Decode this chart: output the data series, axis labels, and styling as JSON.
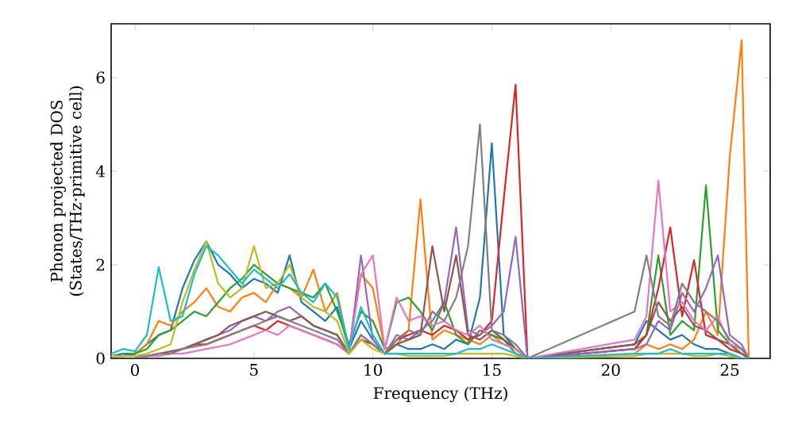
{
  "chart_data": {
    "type": "line",
    "xlabel": "Frequency (THz)",
    "ylabel": "Phonon projected DOS (States/THz·primitive cell)",
    "xlim": [
      -1,
      26.7
    ],
    "ylim": [
      0,
      7.15
    ],
    "xticks": [
      0,
      5,
      10,
      15,
      20,
      25
    ],
    "yticks": [
      0,
      2,
      4,
      6
    ],
    "grid": false,
    "marker": "none",
    "line_style": "solid",
    "x": [
      -1,
      -0.5,
      0,
      0.5,
      1,
      1.5,
      2,
      2.5,
      3,
      3.5,
      4,
      4.5,
      5,
      5.5,
      6,
      6.5,
      7,
      7.5,
      8,
      8.5,
      9,
      9.5,
      10,
      10.5,
      11,
      11.5,
      12,
      12.5,
      13,
      13.5,
      14,
      14.5,
      15,
      15.5,
      16,
      16.5,
      21,
      21.5,
      22,
      22.5,
      23,
      23.5,
      24,
      24.5,
      25,
      25.5,
      25.8
    ],
    "series": [
      {
        "color": "#1f77b4",
        "values": [
          0.05,
          0.1,
          0.1,
          0.3,
          0.5,
          0.6,
          1.5,
          2.1,
          2.5,
          2.0,
          1.8,
          1.5,
          1.7,
          1.6,
          1.4,
          2.2,
          1.2,
          1.0,
          0.8,
          1.1,
          0.2,
          0.8,
          0.4,
          0.1,
          0.3,
          0.2,
          0.2,
          0.3,
          0.2,
          0.4,
          0.3,
          1.3,
          4.6,
          0.5,
          0.2,
          0,
          0.3,
          0.8,
          0.6,
          0.4,
          0.5,
          0.3,
          0.2,
          0.2,
          0.1,
          0,
          0
        ]
      },
      {
        "color": "#ff7f0e",
        "values": [
          0.05,
          0.05,
          0.1,
          0.3,
          0.8,
          0.7,
          1.0,
          1.2,
          1.5,
          1.1,
          1.0,
          1.3,
          1.4,
          1.2,
          1.6,
          1.5,
          1.3,
          1.9,
          1.0,
          1.4,
          0.2,
          1.8,
          1.5,
          0.2,
          0.3,
          0.6,
          3.4,
          0.4,
          0.6,
          0.5,
          0.4,
          0.3,
          0.5,
          0.3,
          0.2,
          0,
          0.1,
          0.3,
          0.2,
          0.3,
          0.2,
          0.4,
          1.0,
          0.5,
          4.3,
          6.8,
          0
        ]
      },
      {
        "color": "#2ca02c",
        "values": [
          0.05,
          0.05,
          0.1,
          0.2,
          0.5,
          0.6,
          0.8,
          1.0,
          0.9,
          1.2,
          1.5,
          1.7,
          2.0,
          1.8,
          1.6,
          1.5,
          1.4,
          1.3,
          1.6,
          1.0,
          0.3,
          1.0,
          0.8,
          0.2,
          1.2,
          1.3,
          1.0,
          0.6,
          1.2,
          0.5,
          0.3,
          0.6,
          0.5,
          0.4,
          0.1,
          0,
          0.2,
          0.5,
          2.2,
          0.5,
          0.8,
          0.6,
          3.7,
          0.6,
          0.3,
          0.2,
          0
        ]
      },
      {
        "color": "#d62728",
        "values": [
          null,
          null,
          null,
          null,
          null,
          null,
          0.2,
          0.3,
          0.3,
          0.4,
          0.5,
          0.6,
          0.7,
          0.6,
          0.8,
          0.7,
          0.6,
          0.5,
          0.4,
          0.3,
          0.1,
          0.4,
          0.3,
          0.1,
          0.4,
          0.5,
          0.6,
          0.5,
          0.7,
          0.6,
          0.4,
          0.5,
          0.8,
          3.4,
          5.85,
          0,
          0.2,
          0.5,
          1.5,
          2.8,
          0.9,
          2.1,
          0.5,
          0.4,
          0.2,
          0.1,
          0
        ]
      },
      {
        "color": "#9467bd",
        "values": [
          null,
          null,
          0.05,
          0.05,
          0.1,
          0.1,
          0.2,
          0.3,
          0.4,
          0.5,
          0.6,
          0.8,
          0.9,
          0.8,
          1.0,
          1.1,
          0.9,
          0.7,
          0.6,
          0.5,
          0.1,
          2.2,
          0.4,
          0.1,
          0.5,
          0.4,
          0.6,
          0.8,
          1.2,
          2.8,
          0.6,
          0.5,
          0.7,
          1.0,
          2.6,
          0,
          0.2,
          0.3,
          0.8,
          0.6,
          1.4,
          1.0,
          1.5,
          2.2,
          0.5,
          0.3,
          0
        ]
      },
      {
        "color": "#8c564b",
        "values": [
          null,
          null,
          0.05,
          0.05,
          0.1,
          0.15,
          0.2,
          0.3,
          0.4,
          0.5,
          0.7,
          0.8,
          0.9,
          1.0,
          0.9,
          0.8,
          0.9,
          0.7,
          0.6,
          0.5,
          0.1,
          0.5,
          0.3,
          0.1,
          0.3,
          0.4,
          0.5,
          2.4,
          1.0,
          2.2,
          0.5,
          0.4,
          0.6,
          0.4,
          0.2,
          0,
          0.3,
          0.5,
          1.2,
          0.8,
          1.1,
          0.7,
          0.6,
          0.4,
          0.3,
          0.1,
          0
        ]
      },
      {
        "color": "#e377c2",
        "values": [
          null,
          null,
          0.05,
          0.05,
          0.05,
          0.1,
          0.1,
          0.15,
          0.2,
          0.25,
          0.3,
          0.4,
          0.5,
          0.6,
          0.5,
          0.7,
          0.6,
          0.5,
          0.4,
          0.3,
          0.1,
          1.8,
          2.2,
          0.2,
          1.3,
          0.8,
          0.9,
          0.7,
          0.8,
          0.6,
          0.5,
          0.7,
          0.4,
          0.3,
          0.2,
          0,
          0.4,
          0.9,
          3.8,
          1.0,
          1.2,
          0.8,
          0.6,
          0.9,
          0.3,
          0.2,
          0
        ]
      },
      {
        "color": "#7f7f7f",
        "values": [
          null,
          null,
          0.05,
          0.05,
          0.1,
          0.1,
          0.2,
          0.25,
          0.3,
          0.4,
          0.5,
          0.6,
          0.7,
          0.8,
          0.9,
          0.8,
          0.7,
          0.6,
          0.5,
          0.4,
          0.1,
          0.5,
          0.3,
          0.1,
          0.4,
          0.6,
          0.5,
          1.0,
          0.8,
          1.3,
          2.4,
          5.0,
          0.6,
          0.5,
          0.3,
          0,
          1.0,
          2.2,
          0.9,
          0.7,
          1.6,
          1.2,
          1.0,
          0.8,
          0.4,
          0.2,
          0
        ]
      },
      {
        "color": "#bcbd22",
        "values": [
          0.05,
          0.05,
          0.05,
          0.1,
          0.2,
          0.3,
          1.2,
          1.9,
          2.5,
          1.6,
          1.3,
          1.5,
          2.4,
          1.5,
          1.6,
          2.0,
          1.3,
          1.1,
          1.0,
          0.8,
          0.1,
          0.4,
          0.2,
          0.1,
          0.1,
          0.05,
          0.05,
          0.05,
          0.05,
          0.1,
          0.1,
          0.1,
          0.1,
          0.1,
          0.05,
          0,
          0.05,
          0.1,
          0.1,
          0.1,
          0.1,
          0.05,
          0.05,
          0.1,
          0.05,
          0,
          0
        ]
      },
      {
        "color": "#17becf",
        "values": [
          0.1,
          0.2,
          0.15,
          0.5,
          1.95,
          0.8,
          0.9,
          1.8,
          2.4,
          2.2,
          1.9,
          1.6,
          1.9,
          1.7,
          1.5,
          1.8,
          1.4,
          1.2,
          1.6,
          1.3,
          0.2,
          1.1,
          0.5,
          0.1,
          0.1,
          0.1,
          0.1,
          0.1,
          0.1,
          0.1,
          0.2,
          0.2,
          0.3,
          0.2,
          0.1,
          0,
          0.1,
          0.1,
          0.1,
          0.2,
          0.1,
          0.1,
          0.1,
          0.1,
          0.1,
          0,
          0
        ]
      }
    ]
  }
}
